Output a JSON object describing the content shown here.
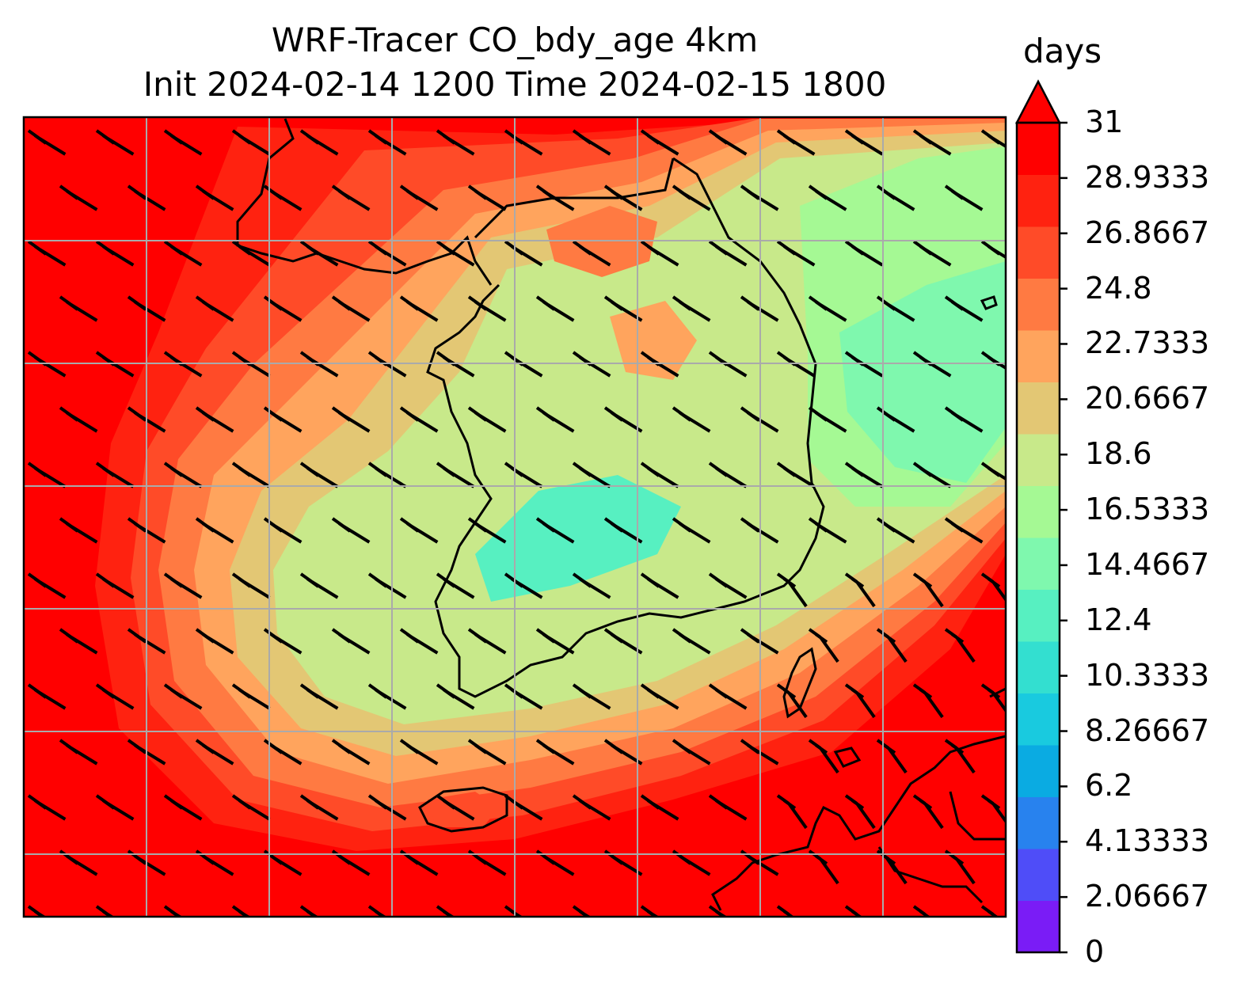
{
  "title": {
    "line1": "WRF-Tracer CO_bdy_age 4km",
    "line2": "Init 2024-02-14 1200 Time 2024-02-15 1800"
  },
  "colorbar": {
    "unit": "days",
    "extend": "max",
    "levels": [
      "0",
      "2.06667",
      "4.13333",
      "6.2",
      "8.26667",
      "10.3333",
      "12.4",
      "14.4667",
      "16.5333",
      "18.6",
      "20.6667",
      "22.7333",
      "24.8",
      "26.8667",
      "28.9333",
      "31"
    ],
    "colors": [
      "#7a1cf6",
      "#4f4df8",
      "#2882ee",
      "#0aabe2",
      "#19cadf",
      "#33dfd0",
      "#57f0c1",
      "#7ff8ae",
      "#a5f994",
      "#c8e98a",
      "#e3c774",
      "#ffa45d",
      "#ff7a42",
      "#ff4b28",
      "#ff2210",
      "#ff0000"
    ]
  },
  "map": {
    "field": "CO_bdy_age",
    "overlays": [
      "wind-barbs",
      "coastlines",
      "gridlines"
    ],
    "colors": {
      "ocean_far": "#ff0000",
      "ring1": "#ff2210",
      "ring2": "#ff4b28",
      "ring3": "#ff7a42",
      "ring4": "#ffa45d",
      "ring5": "#e3c774",
      "inland": "#c8e98a",
      "eastsea": "#a5f994",
      "eastsea_core": "#7ff8ae",
      "valley": "#57f0c1",
      "coast": "#000000",
      "grid": "#aaaaaa"
    }
  }
}
